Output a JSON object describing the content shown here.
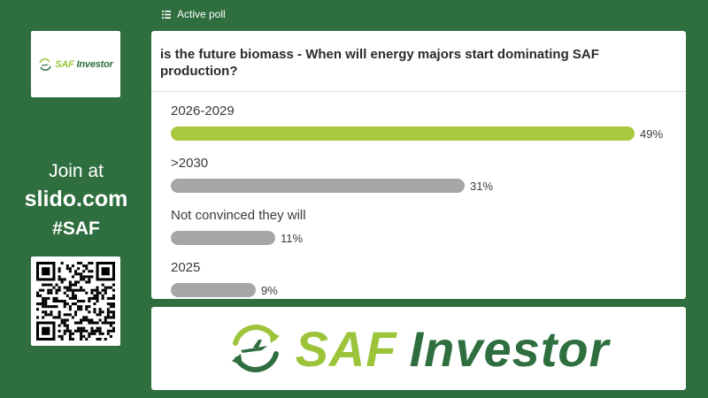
{
  "header": {
    "label": "Active poll",
    "icon": "list-icon"
  },
  "sidebar": {
    "join_line": "Join at",
    "site": "slido.com",
    "code": "#SAF"
  },
  "brand": {
    "saf": "SAF",
    "investor": "Investor",
    "accent": "#9bc43a",
    "primary": "#2e6e3f"
  },
  "poll": {
    "question": "is the future biomass - When will energy majors start dominating SAF production?",
    "options": [
      {
        "label": "2026-2029",
        "percent": 49,
        "percent_label": "49%",
        "leading": true
      },
      {
        "label": ">2030",
        "percent": 31,
        "percent_label": "31%",
        "leading": false
      },
      {
        "label": "Not convinced they will",
        "percent": 11,
        "percent_label": "11%",
        "leading": false
      },
      {
        "label": "2025",
        "percent": 9,
        "percent_label": "9%",
        "leading": false
      }
    ]
  }
}
